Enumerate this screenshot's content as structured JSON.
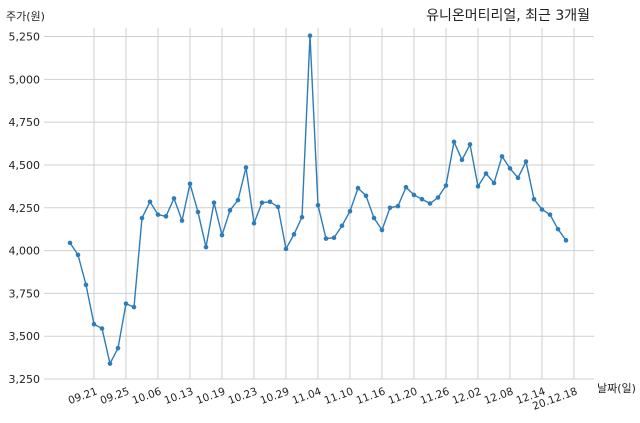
{
  "chart_data": {
    "type": "line",
    "title": "유니온머티리얼, 최근 3개월",
    "ylabel": "주가(원)",
    "xlabel": "날짜(일)",
    "ylim": [
      3250,
      5300
    ],
    "yticks": [
      3250,
      3500,
      3750,
      4000,
      4250,
      4500,
      4750,
      5000,
      5250
    ],
    "ytick_labels": [
      "3,250",
      "3,500",
      "3,750",
      "4,000",
      "4,250",
      "4,500",
      "4,750",
      "5,000",
      "5,250"
    ],
    "xtick_labels": [
      "09.21",
      "09.25",
      "10.06",
      "10.13",
      "10.19",
      "10.23",
      "10.29",
      "11.04",
      "11.10",
      "11.16",
      "11.20",
      "11.26",
      "12.02",
      "12.08",
      "12.14",
      "20.12.18"
    ],
    "xtick_positions": [
      3,
      7,
      11,
      15,
      19,
      23,
      27,
      31,
      35,
      39,
      43,
      47,
      51,
      55,
      59,
      63
    ],
    "grid": true,
    "line_color": "#2e7cb8",
    "values": [
      4045,
      3975,
      3800,
      3570,
      3545,
      3340,
      3430,
      3690,
      3670,
      4190,
      4285,
      4210,
      4200,
      4305,
      4175,
      4390,
      4225,
      4020,
      4280,
      4090,
      4235,
      4295,
      4485,
      4160,
      4280,
      4285,
      4255,
      4010,
      4095,
      4195,
      5255,
      4265,
      4070,
      4075,
      4145,
      4230,
      4365,
      4320,
      4190,
      4120,
      4250,
      4260,
      4370,
      4325,
      4300,
      4275,
      4310,
      4380,
      4635,
      4530,
      4620,
      4375,
      4450,
      4395,
      4550,
      4480,
      4425,
      4520,
      4300,
      4240,
      4210,
      4125,
      4060
    ]
  }
}
